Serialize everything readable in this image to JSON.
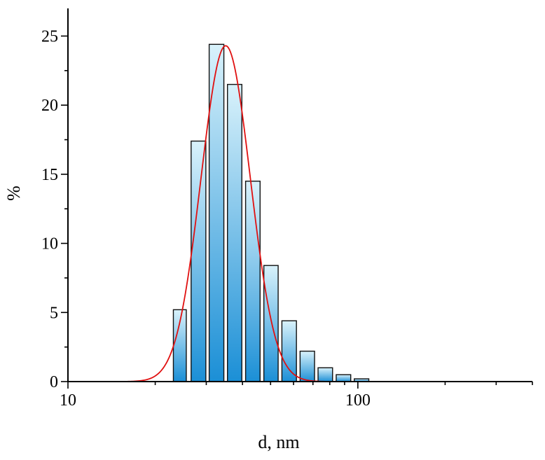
{
  "chart_data": {
    "type": "bar",
    "xscale": "log",
    "xlabel": "d, nm",
    "ylabel": "%",
    "xlim": [
      10,
      400
    ],
    "ylim": [
      0,
      27
    ],
    "grid": false,
    "x_ticks": [
      {
        "value": 10,
        "label": "10"
      },
      {
        "value": 100,
        "label": "100"
      }
    ],
    "y_ticks": [
      {
        "value": 0,
        "label": "0"
      },
      {
        "value": 5,
        "label": "5"
      },
      {
        "value": 10,
        "label": "10"
      },
      {
        "value": 15,
        "label": "15"
      },
      {
        "value": 20,
        "label": "20"
      },
      {
        "value": 25,
        "label": "25"
      }
    ],
    "bars": [
      {
        "x_start": 23.1,
        "x_end": 25.6,
        "value": 5.2
      },
      {
        "x_start": 26.6,
        "x_end": 29.9,
        "value": 17.4
      },
      {
        "x_start": 30.7,
        "x_end": 34.5,
        "value": 24.4
      },
      {
        "x_start": 35.5,
        "x_end": 39.8,
        "value": 21.5
      },
      {
        "x_start": 41.0,
        "x_end": 46.0,
        "value": 14.5
      },
      {
        "x_start": 47.4,
        "x_end": 53.1,
        "value": 8.4
      },
      {
        "x_start": 54.7,
        "x_end": 61.4,
        "value": 4.4
      },
      {
        "x_start": 63.2,
        "x_end": 70.9,
        "value": 2.2
      },
      {
        "x_start": 72.9,
        "x_end": 81.8,
        "value": 1.0
      },
      {
        "x_start": 84.2,
        "x_end": 94.5,
        "value": 0.5
      },
      {
        "x_start": 97.2,
        "x_end": 109.1,
        "value": 0.2
      }
    ],
    "fit": {
      "type": "lognormal",
      "peak_x": 35.0,
      "peak_y": 24.3,
      "log10_sigma": 0.085,
      "color": "#e01010"
    },
    "colors": {
      "bar_top": "#d9f2fb",
      "bar_bottom": "#1b8fd6",
      "bar_edge": "#111111"
    }
  }
}
